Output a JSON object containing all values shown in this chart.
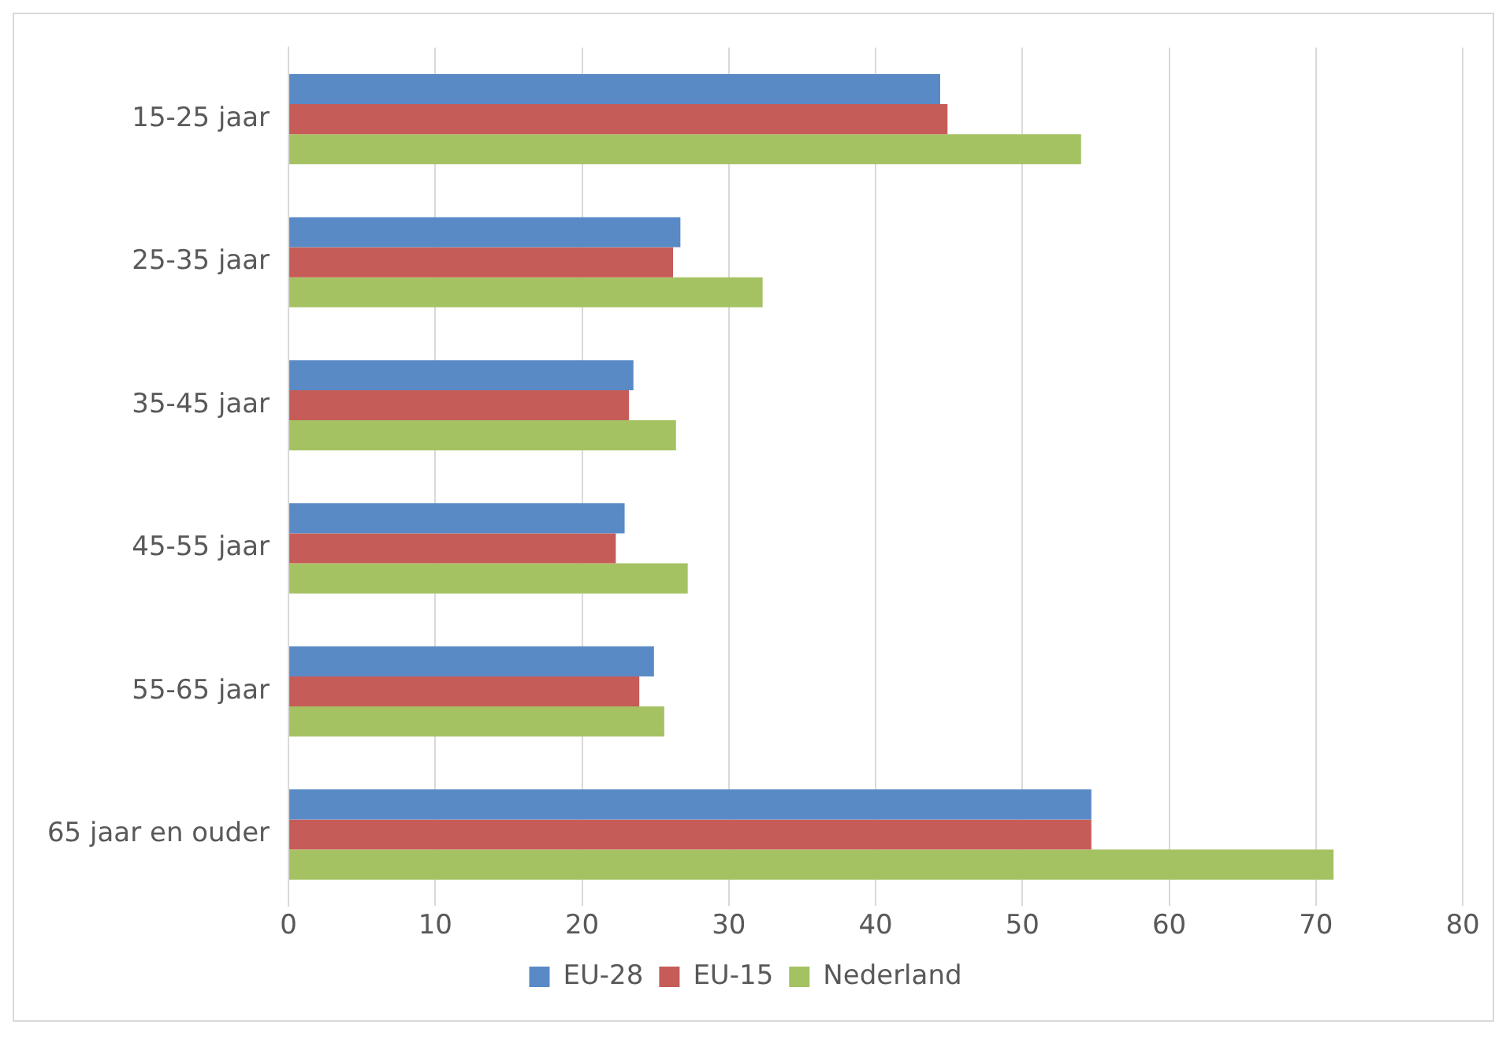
{
  "chart_data": {
    "type": "bar",
    "orientation": "horizontal",
    "categories": [
      "15-25 jaar",
      "25-35 jaar",
      "35-45 jaar",
      "45-55 jaar",
      "55-65 jaar",
      "65 jaar en ouder"
    ],
    "series": [
      {
        "name": "EU-28",
        "color": "#5a8ac6",
        "values": [
          44.4,
          26.7,
          23.5,
          22.9,
          24.9,
          54.7
        ]
      },
      {
        "name": "EU-15",
        "color": "#c65c58",
        "values": [
          44.9,
          26.2,
          23.2,
          22.3,
          23.9,
          54.7
        ]
      },
      {
        "name": "Nederland",
        "color": "#a5c263",
        "values": [
          54.0,
          32.3,
          26.4,
          27.2,
          25.6,
          71.2
        ]
      }
    ],
    "xlim": [
      0,
      80
    ],
    "xticks": [
      0,
      10,
      20,
      30,
      40,
      50,
      60,
      70,
      80
    ],
    "grid": "x",
    "legend": "bottom"
  }
}
